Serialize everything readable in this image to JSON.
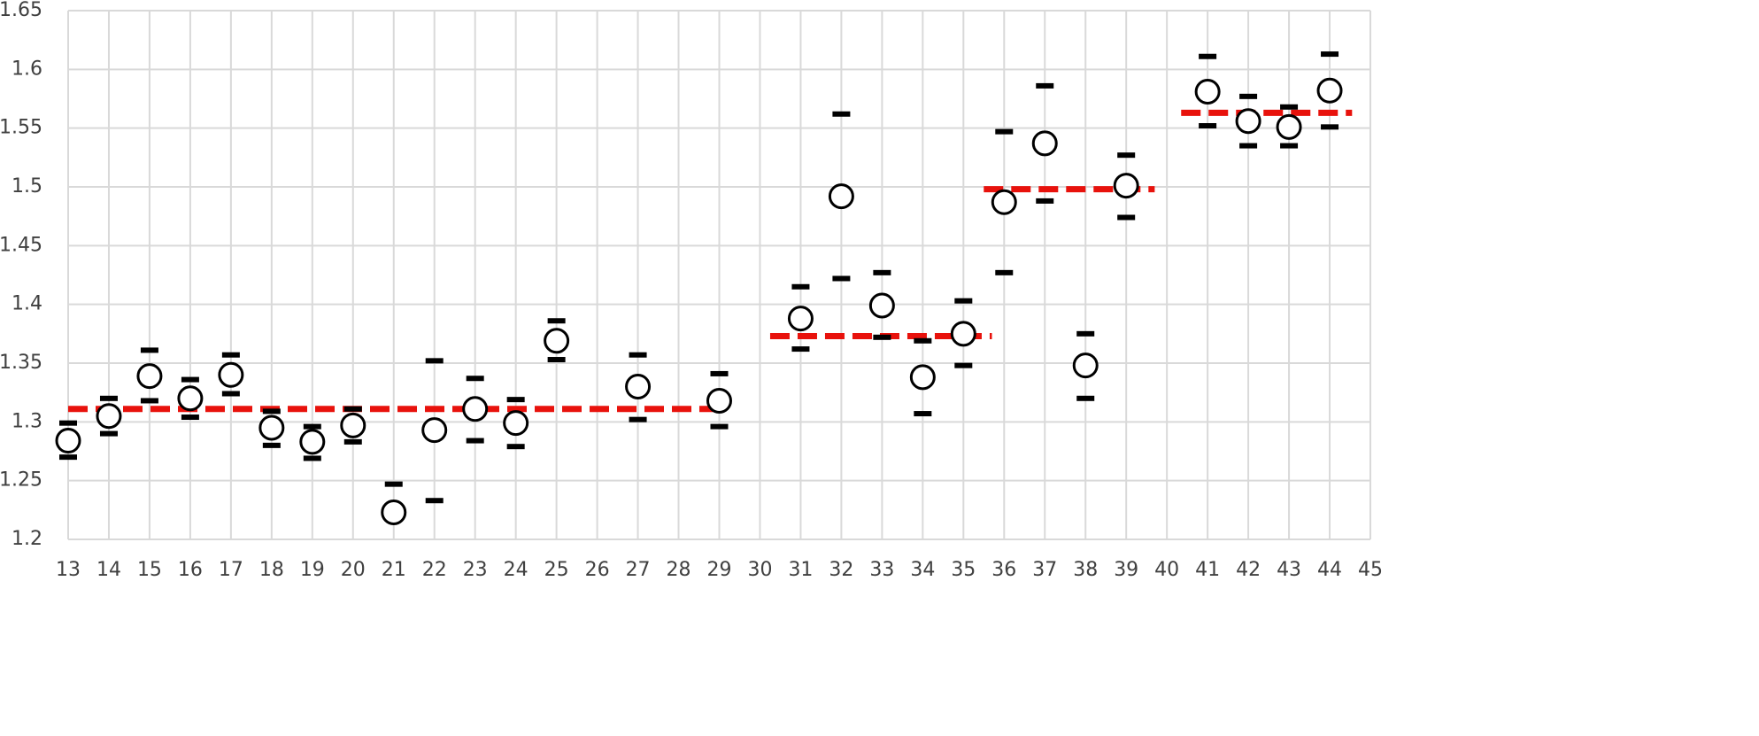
{
  "chart_data": {
    "type": "scatter",
    "x": [
      13,
      14,
      15,
      16,
      17,
      18,
      19,
      20,
      21,
      22,
      23,
      24,
      25,
      27,
      29,
      31,
      32,
      33,
      34,
      35,
      36,
      37,
      38,
      39,
      41,
      42,
      43,
      44
    ],
    "values": [
      1.284,
      1.305,
      1.339,
      1.32,
      1.34,
      1.295,
      1.283,
      1.297,
      1.223,
      1.293,
      1.311,
      1.299,
      1.369,
      1.33,
      1.318,
      1.388,
      1.492,
      1.399,
      1.338,
      1.375,
      1.487,
      1.537,
      1.348,
      1.501,
      1.581,
      1.556,
      1.551,
      1.582
    ],
    "high": [
      1.299,
      1.32,
      1.361,
      1.336,
      1.357,
      1.309,
      1.296,
      1.311,
      1.247,
      1.352,
      1.337,
      1.319,
      1.386,
      1.357,
      1.341,
      1.415,
      1.562,
      1.427,
      1.369,
      1.403,
      1.547,
      1.586,
      1.375,
      1.527,
      1.611,
      1.577,
      1.568,
      1.613
    ],
    "low": [
      1.27,
      1.29,
      1.318,
      1.304,
      1.324,
      1.28,
      1.269,
      1.283,
      null,
      1.233,
      1.284,
      1.279,
      1.353,
      1.302,
      1.296,
      1.362,
      1.422,
      1.372,
      1.307,
      1.348,
      1.427,
      1.488,
      1.32,
      1.474,
      1.552,
      1.535,
      1.535,
      1.551
    ],
    "marker_color": "#000000",
    "mean_lines": [
      {
        "x": [
          13,
          29
        ],
        "value": 1.311
      },
      {
        "x": [
          30.25,
          35.7
        ],
        "value": 1.373
      },
      {
        "x": [
          35.5,
          39.7
        ],
        "value": 1.498
      },
      {
        "x": [
          40.35,
          44.55
        ],
        "value": 1.563
      }
    ],
    "mean_color": "#e8120c",
    "xlim": [
      13,
      45
    ],
    "xticks": [
      13,
      14,
      15,
      16,
      17,
      18,
      19,
      20,
      21,
      22,
      23,
      24,
      25,
      26,
      27,
      28,
      29,
      30,
      31,
      32,
      33,
      34,
      35,
      36,
      37,
      38,
      39,
      40,
      41,
      42,
      43,
      44,
      45
    ],
    "ylim": [
      1.2,
      1.65
    ],
    "yticks": [
      1.2,
      1.25,
      1.3,
      1.35,
      1.4,
      1.45,
      1.5,
      1.55,
      1.6,
      1.65
    ],
    "grid": true
  }
}
